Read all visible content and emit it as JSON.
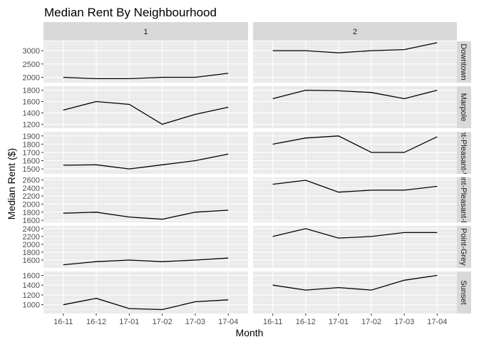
{
  "chart_data": {
    "type": "line",
    "title": "Median Rent By Neighbourhood",
    "xlabel": "Month",
    "ylabel": "Median Rent ($)",
    "x": [
      "16-11",
      "16-12",
      "17-01",
      "17-02",
      "17-03",
      "17-04"
    ],
    "col_facets": [
      "1",
      "2"
    ],
    "row_facets": [
      {
        "label": "Downtown",
        "ylim": [
          1800,
          3350
        ],
        "yticks": [
          2000,
          2500,
          3000
        ],
        "minor": [
          2250,
          2750,
          3250
        ],
        "series": [
          {
            "facet": "1",
            "values": [
              2000,
              1950,
              1950,
              2000,
              2000,
              2150
            ]
          },
          {
            "facet": "2",
            "values": [
              3000,
              3000,
              2920,
              3000,
              3040,
              3300
            ]
          }
        ]
      },
      {
        "label": "Marpole",
        "ylim": [
          1130,
          1870
        ],
        "yticks": [
          1200,
          1400,
          1600,
          1800
        ],
        "minor": [
          1300,
          1500,
          1700
        ],
        "series": [
          {
            "facet": "1",
            "values": [
              1450,
              1600,
              1550,
              1200,
              1375,
              1500
            ]
          },
          {
            "facet": "2",
            "values": [
              1650,
              1800,
              1790,
              1760,
              1650,
              1800
            ]
          }
        ]
      },
      {
        "label": "Mount-Pleasant-West",
        "ylim": [
          1440,
          1950
        ],
        "yticks": [
          1500,
          1600,
          1700,
          1800,
          1900
        ],
        "minor": [
          1550,
          1650,
          1750,
          1850
        ],
        "series": [
          {
            "facet": "1",
            "values": [
              1545,
              1550,
              1500,
              1550,
              1600,
              1680
            ]
          },
          {
            "facet": "2",
            "values": [
              1800,
              1875,
              1900,
              1700,
              1700,
              1890
            ]
          }
        ]
      },
      {
        "label": "Mount-Pleasant-East",
        "ylim": [
          1550,
          2660
        ],
        "yticks": [
          1600,
          1800,
          2000,
          2200,
          2400,
          2600
        ],
        "minor": [
          1700,
          1900,
          2100,
          2300,
          2500
        ],
        "series": [
          {
            "facet": "1",
            "values": [
              1775,
              1800,
              1680,
              1625,
              1800,
              1850
            ]
          },
          {
            "facet": "2",
            "values": [
              2490,
              2590,
              2295,
              2345,
              2345,
              2440
            ]
          }
        ]
      },
      {
        "label": "Point-Grey",
        "ylim": [
          1400,
          2470
        ],
        "yticks": [
          1600,
          1800,
          2000,
          2200,
          2400
        ],
        "minor": [
          1500,
          1700,
          1900,
          2100,
          2300
        ],
        "series": [
          {
            "facet": "1",
            "values": [
              1480,
              1560,
              1600,
              1560,
              1600,
              1650
            ]
          },
          {
            "facet": "2",
            "values": [
              2200,
              2400,
              2160,
              2200,
              2300,
              2300
            ]
          }
        ]
      },
      {
        "label": "Sunset",
        "ylim": [
          820,
          1680
        ],
        "yticks": [
          1000,
          1200,
          1400,
          1600
        ],
        "minor": [
          900,
          1100,
          1300,
          1500
        ],
        "series": [
          {
            "facet": "1",
            "values": [
              1000,
              1130,
              920,
              900,
              1060,
              1100
            ]
          },
          {
            "facet": "2",
            "values": [
              1400,
              1300,
              1350,
              1300,
              1500,
              1600
            ]
          }
        ]
      }
    ],
    "grid": true,
    "legend": "none"
  }
}
